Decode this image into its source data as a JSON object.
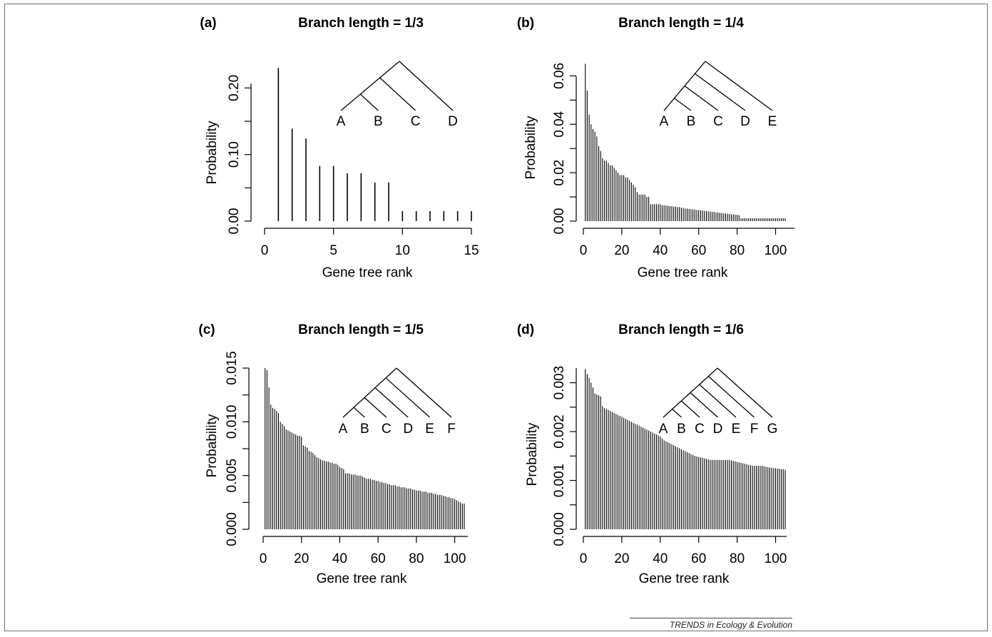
{
  "footer": {
    "journal": "TRENDS in Ecology & Evolution"
  },
  "chart_data": [
    {
      "type": "bar",
      "panel_label": "(a)",
      "title": "Branch length = 1/3",
      "xlabel": "Gene tree rank",
      "ylabel": "Probability",
      "xlim": [
        0,
        15
      ],
      "ylim": [
        0,
        0.24
      ],
      "xticks": [
        0,
        5,
        10,
        15
      ],
      "yticks": [
        0.0,
        0.1,
        0.2
      ],
      "ytick_labels": [
        "0.00",
        "0.10",
        "0.20"
      ],
      "x": [
        1,
        2,
        3,
        4,
        5,
        6,
        7,
        8,
        9,
        10,
        11,
        12,
        13,
        14,
        15
      ],
      "values": [
        0.23,
        0.139,
        0.124,
        0.083,
        0.083,
        0.072,
        0.072,
        0.058,
        0.058,
        0.015,
        0.015,
        0.015,
        0.015,
        0.015,
        0.015
      ],
      "species_tree": {
        "taxa": [
          "A",
          "B",
          "C",
          "D"
        ]
      }
    },
    {
      "type": "bar",
      "panel_label": "(b)",
      "title": "Branch length = 1/4",
      "xlabel": "Gene tree rank",
      "ylabel": "Probability",
      "xlim": [
        0,
        105
      ],
      "ylim": [
        0,
        0.066
      ],
      "xticks": [
        0,
        20,
        40,
        60,
        80,
        100
      ],
      "yticks": [
        0.0,
        0.02,
        0.04,
        0.06
      ],
      "ytick_labels": [
        "0.00",
        "0.02",
        "0.04",
        "0.06"
      ],
      "x_count": 105,
      "values": [
        0.065,
        0.054,
        0.044,
        0.04,
        0.038,
        0.037,
        0.035,
        0.031,
        0.029,
        0.026,
        0.025,
        0.025,
        0.024,
        0.023,
        0.023,
        0.022,
        0.021,
        0.02,
        0.019,
        0.019,
        0.019,
        0.018,
        0.018,
        0.017,
        0.016,
        0.015,
        0.014,
        0.012,
        0.011,
        0.011,
        0.011,
        0.011,
        0.01,
        0.01,
        0.007,
        0.007,
        0.007,
        0.007,
        0.007,
        0.007,
        0.0066,
        0.0066,
        0.0064,
        0.0064,
        0.0062,
        0.0062,
        0.006,
        0.006,
        0.0058,
        0.0058,
        0.0055,
        0.0055,
        0.0052,
        0.0052,
        0.005,
        0.005,
        0.0048,
        0.0048,
        0.0046,
        0.0046,
        0.0044,
        0.0044,
        0.0042,
        0.0042,
        0.004,
        0.004,
        0.0038,
        0.0038,
        0.0036,
        0.0036,
        0.0034,
        0.0034,
        0.0032,
        0.0032,
        0.003,
        0.003,
        0.0028,
        0.0028,
        0.0026,
        0.0026,
        0.0024,
        0.0012,
        0.0012,
        0.0012,
        0.0012,
        0.0012,
        0.0012,
        0.0012,
        0.0012,
        0.0012,
        0.0012,
        0.0012,
        0.0012,
        0.0012,
        0.0012,
        0.0012,
        0.0012,
        0.0012,
        0.0012,
        0.0012,
        0.0012,
        0.0012,
        0.0012,
        0.0012,
        0.0012
      ],
      "species_tree": {
        "taxa": [
          "A",
          "B",
          "C",
          "D",
          "E"
        ]
      }
    },
    {
      "type": "bar",
      "panel_label": "(c)",
      "title": "Branch length = 1/5",
      "xlabel": "Gene tree rank",
      "ylabel": "Probability",
      "xlim": [
        0,
        105
      ],
      "ylim": [
        0,
        0.015
      ],
      "xticks": [
        0,
        20,
        40,
        60,
        80,
        100
      ],
      "yticks": [
        0.0,
        0.005,
        0.01,
        0.015
      ],
      "ytick_labels": [
        "0.000",
        "0.005",
        "0.010",
        "0.015"
      ],
      "x_count": 105,
      "values": [
        0.015,
        0.0148,
        0.0132,
        0.0116,
        0.0113,
        0.0112,
        0.011,
        0.0108,
        0.01,
        0.0098,
        0.0096,
        0.0093,
        0.0092,
        0.0091,
        0.009,
        0.0089,
        0.0088,
        0.0087,
        0.0087,
        0.0086,
        0.0078,
        0.0077,
        0.0076,
        0.0073,
        0.0072,
        0.0071,
        0.0069,
        0.0067,
        0.0066,
        0.0065,
        0.0064,
        0.0064,
        0.0063,
        0.0063,
        0.0062,
        0.0062,
        0.0061,
        0.0061,
        0.006,
        0.0058,
        0.0057,
        0.0056,
        0.0052,
        0.0052,
        0.0052,
        0.0051,
        0.0051,
        0.0051,
        0.005,
        0.005,
        0.005,
        0.0049,
        0.0048,
        0.0047,
        0.0047,
        0.0047,
        0.0046,
        0.0046,
        0.0045,
        0.0045,
        0.0044,
        0.0044,
        0.0043,
        0.0043,
        0.0042,
        0.0042,
        0.0041,
        0.0041,
        0.0041,
        0.004,
        0.004,
        0.0039,
        0.0039,
        0.0039,
        0.0038,
        0.0038,
        0.0038,
        0.0037,
        0.0037,
        0.0036,
        0.0036,
        0.0036,
        0.0035,
        0.0035,
        0.0035,
        0.0034,
        0.0034,
        0.0034,
        0.0033,
        0.0033,
        0.0032,
        0.0032,
        0.0032,
        0.0031,
        0.0031,
        0.003,
        0.003,
        0.0029,
        0.0029,
        0.0028,
        0.0027,
        0.0026,
        0.0025,
        0.0024,
        0.0024
      ],
      "species_tree": {
        "taxa": [
          "A",
          "B",
          "C",
          "D",
          "E",
          "F"
        ]
      }
    },
    {
      "type": "bar",
      "panel_label": "(d)",
      "title": "Branch length = 1/6",
      "xlabel": "Gene tree rank",
      "ylabel": "Probability",
      "xlim": [
        0,
        105
      ],
      "ylim": [
        0,
        0.0033
      ],
      "xticks": [
        0,
        20,
        40,
        60,
        80,
        100
      ],
      "yticks": [
        0.0,
        0.001,
        0.002,
        0.003
      ],
      "ytick_labels": [
        "0.000",
        "0.001",
        "0.002",
        "0.003"
      ],
      "x_count": 105,
      "values": [
        0.00328,
        0.00318,
        0.0031,
        0.003,
        0.0029,
        0.00278,
        0.00276,
        0.00274,
        0.00272,
        0.00252,
        0.00248,
        0.00246,
        0.00244,
        0.00242,
        0.0024,
        0.00238,
        0.00236,
        0.00234,
        0.00232,
        0.0023,
        0.00228,
        0.00226,
        0.00224,
        0.00222,
        0.0022,
        0.00218,
        0.00216,
        0.00214,
        0.00212,
        0.0021,
        0.00208,
        0.00206,
        0.00204,
        0.00202,
        0.002,
        0.00198,
        0.00196,
        0.00194,
        0.00192,
        0.0019,
        0.00186,
        0.00182,
        0.0018,
        0.00178,
        0.00176,
        0.00174,
        0.00172,
        0.0017,
        0.00168,
        0.00166,
        0.00164,
        0.00162,
        0.0016,
        0.00158,
        0.00156,
        0.00154,
        0.00152,
        0.0015,
        0.00149,
        0.00148,
        0.00147,
        0.00146,
        0.00145,
        0.00144,
        0.00143,
        0.00142,
        0.00142,
        0.00142,
        0.00142,
        0.00142,
        0.00142,
        0.00142,
        0.00142,
        0.00142,
        0.00142,
        0.00142,
        0.00141,
        0.0014,
        0.00139,
        0.00138,
        0.00137,
        0.00136,
        0.00135,
        0.00134,
        0.00133,
        0.00132,
        0.00131,
        0.0013,
        0.0013,
        0.0013,
        0.0013,
        0.0013,
        0.0013,
        0.00129,
        0.00128,
        0.00127,
        0.00126,
        0.00126,
        0.00125,
        0.00125,
        0.00124,
        0.00124,
        0.00123,
        0.00123,
        0.00122
      ],
      "species_tree": {
        "taxa": [
          "A",
          "B",
          "C",
          "D",
          "E",
          "F",
          "G"
        ]
      }
    }
  ]
}
